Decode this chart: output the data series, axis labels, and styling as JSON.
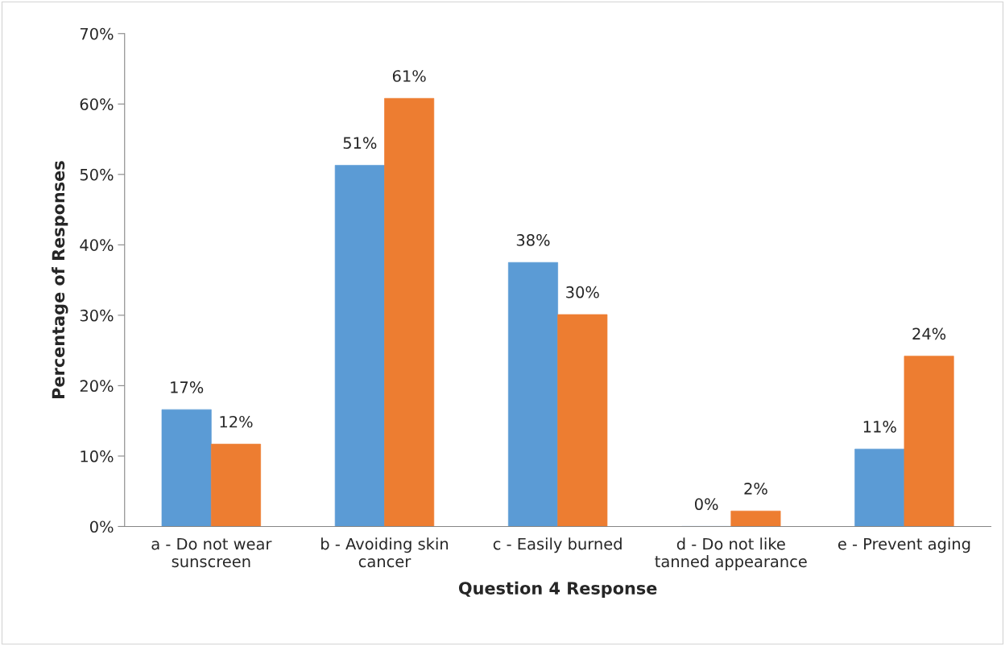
{
  "chart_data": {
    "type": "bar",
    "xlabel": "Question 4 Response",
    "ylabel": "Percentage of Responses",
    "categories": [
      "a - Do not wear\nsunscreen",
      "b - Avoiding skin\ncancer",
      "c - Easily burned",
      "d - Do not like\ntanned appearance",
      "e - Prevent aging"
    ],
    "series": [
      {
        "color": "#5b9bd5",
        "values": [
          16.6,
          51.3,
          37.5,
          0,
          11.0
        ],
        "value_labels": [
          "17%",
          "51%",
          "38%",
          "0%",
          "11%"
        ]
      },
      {
        "color": "#ed7d31",
        "values": [
          11.7,
          60.8,
          30.1,
          2.2,
          24.2
        ],
        "value_labels": [
          "12%",
          "61%",
          "30%",
          "2%",
          "24%"
        ]
      }
    ],
    "ylim": [
      0,
      70
    ],
    "yticks": [
      {
        "value": 0,
        "label": "0%"
      },
      {
        "value": 10,
        "label": "10%"
      },
      {
        "value": 20,
        "label": "20%"
      },
      {
        "value": 30,
        "label": "30%"
      },
      {
        "value": 40,
        "label": "40%"
      },
      {
        "value": 50,
        "label": "50%"
      },
      {
        "value": 60,
        "label": "60%"
      },
      {
        "value": 70,
        "label": "70%"
      }
    ],
    "grid": false,
    "legend": false
  }
}
